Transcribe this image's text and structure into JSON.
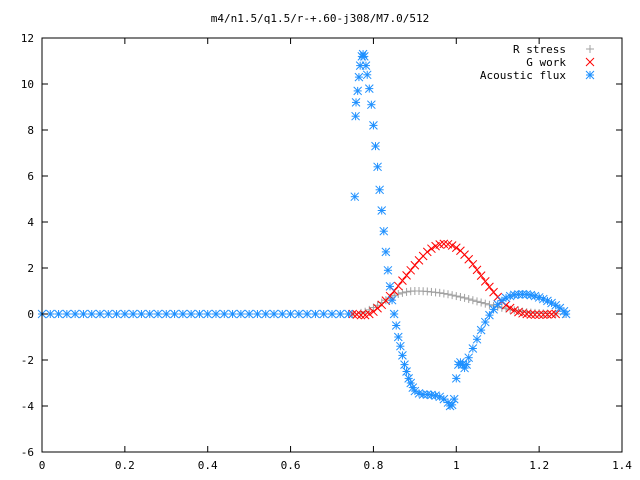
{
  "chart_data": {
    "type": "scatter",
    "title": "m4/n1.5/q1.5/r-+.60-j308/M7.0/512",
    "xlabel": "",
    "ylabel": "",
    "xlim": [
      0,
      1.4
    ],
    "ylim": [
      -6,
      12
    ],
    "xticks": [
      0,
      0.2,
      0.4,
      0.6,
      0.8,
      1,
      1.2,
      1.4
    ],
    "xtick_labels": [
      "0",
      "0.2",
      "0.4",
      "0.6",
      "0.8",
      "1",
      "1.2",
      "1.4"
    ],
    "yticks": [
      -6,
      -4,
      -2,
      0,
      2,
      4,
      6,
      8,
      10,
      12
    ],
    "ytick_labels": [
      "-6",
      "-4",
      "-2",
      "0",
      "2",
      "4",
      "6",
      "8",
      "10",
      "12"
    ],
    "grid": false,
    "legend_position": "top-right",
    "series": [
      {
        "name": "R stress",
        "marker": "plus",
        "color": "#a0a0a0",
        "points": [
          [
            0.75,
            0.0
          ],
          [
            0.77,
            0.05
          ],
          [
            0.78,
            0.1
          ],
          [
            0.79,
            0.18
          ],
          [
            0.8,
            0.28
          ],
          [
            0.81,
            0.38
          ],
          [
            0.82,
            0.5
          ],
          [
            0.83,
            0.6
          ],
          [
            0.84,
            0.7
          ],
          [
            0.85,
            0.8
          ],
          [
            0.86,
            0.87
          ],
          [
            0.87,
            0.92
          ],
          [
            0.88,
            0.96
          ],
          [
            0.89,
            0.99
          ],
          [
            0.9,
            1.0
          ],
          [
            0.91,
            1.0
          ],
          [
            0.92,
            0.99
          ],
          [
            0.93,
            0.98
          ],
          [
            0.94,
            0.96
          ],
          [
            0.95,
            0.94
          ],
          [
            0.96,
            0.92
          ],
          [
            0.97,
            0.89
          ],
          [
            0.98,
            0.86
          ],
          [
            0.99,
            0.82
          ],
          [
            1.0,
            0.78
          ],
          [
            1.01,
            0.74
          ],
          [
            1.02,
            0.7
          ],
          [
            1.03,
            0.65
          ],
          [
            1.04,
            0.6
          ],
          [
            1.05,
            0.55
          ],
          [
            1.06,
            0.5
          ],
          [
            1.07,
            0.45
          ],
          [
            1.08,
            0.4
          ],
          [
            1.09,
            0.35
          ],
          [
            1.1,
            0.31
          ],
          [
            1.11,
            0.27
          ],
          [
            1.12,
            0.23
          ],
          [
            1.13,
            0.19
          ],
          [
            1.14,
            0.16
          ],
          [
            1.15,
            0.13
          ],
          [
            1.16,
            0.1
          ],
          [
            1.17,
            0.08
          ],
          [
            1.18,
            0.06
          ],
          [
            1.19,
            0.05
          ],
          [
            1.2,
            0.04
          ],
          [
            1.21,
            0.03
          ],
          [
            1.22,
            0.02
          ],
          [
            1.24,
            0.01
          ],
          [
            1.26,
            0.0
          ]
        ]
      },
      {
        "name": "G work",
        "marker": "cross",
        "color": "#ff0000",
        "points": [
          [
            0.75,
            0.0
          ],
          [
            0.76,
            -0.02
          ],
          [
            0.77,
            -0.05
          ],
          [
            0.78,
            -0.05
          ],
          [
            0.79,
            0.0
          ],
          [
            0.8,
            0.1
          ],
          [
            0.81,
            0.25
          ],
          [
            0.82,
            0.4
          ],
          [
            0.83,
            0.58
          ],
          [
            0.84,
            0.78
          ],
          [
            0.85,
            1.0
          ],
          [
            0.86,
            1.22
          ],
          [
            0.87,
            1.45
          ],
          [
            0.88,
            1.68
          ],
          [
            0.89,
            1.9
          ],
          [
            0.9,
            2.12
          ],
          [
            0.91,
            2.33
          ],
          [
            0.92,
            2.52
          ],
          [
            0.93,
            2.7
          ],
          [
            0.94,
            2.84
          ],
          [
            0.95,
            2.95
          ],
          [
            0.96,
            3.02
          ],
          [
            0.97,
            3.05
          ],
          [
            0.98,
            3.03
          ],
          [
            0.99,
            2.98
          ],
          [
            1.0,
            2.88
          ],
          [
            1.01,
            2.75
          ],
          [
            1.02,
            2.58
          ],
          [
            1.03,
            2.38
          ],
          [
            1.04,
            2.16
          ],
          [
            1.05,
            1.92
          ],
          [
            1.06,
            1.67
          ],
          [
            1.07,
            1.42
          ],
          [
            1.08,
            1.18
          ],
          [
            1.09,
            0.95
          ],
          [
            1.1,
            0.74
          ],
          [
            1.11,
            0.55
          ],
          [
            1.12,
            0.39
          ],
          [
            1.13,
            0.26
          ],
          [
            1.14,
            0.16
          ],
          [
            1.15,
            0.08
          ],
          [
            1.16,
            0.03
          ],
          [
            1.17,
            0.0
          ],
          [
            1.18,
            -0.02
          ],
          [
            1.19,
            -0.03
          ],
          [
            1.2,
            -0.03
          ],
          [
            1.21,
            -0.03
          ],
          [
            1.22,
            -0.02
          ],
          [
            1.23,
            -0.01
          ],
          [
            1.24,
            0.0
          ]
        ]
      },
      {
        "name": "Acoustic flux",
        "marker": "star",
        "color": "#1e90ff",
        "points": [
          [
            0.0,
            0.0
          ],
          [
            0.02,
            0.0
          ],
          [
            0.04,
            0.0
          ],
          [
            0.06,
            0.0
          ],
          [
            0.08,
            0.0
          ],
          [
            0.1,
            0.0
          ],
          [
            0.12,
            0.0
          ],
          [
            0.14,
            0.0
          ],
          [
            0.16,
            0.0
          ],
          [
            0.18,
            0.0
          ],
          [
            0.2,
            0.0
          ],
          [
            0.22,
            0.0
          ],
          [
            0.24,
            0.0
          ],
          [
            0.26,
            0.0
          ],
          [
            0.28,
            0.0
          ],
          [
            0.3,
            0.0
          ],
          [
            0.32,
            0.0
          ],
          [
            0.34,
            0.0
          ],
          [
            0.36,
            0.0
          ],
          [
            0.38,
            0.0
          ],
          [
            0.4,
            0.0
          ],
          [
            0.42,
            0.0
          ],
          [
            0.44,
            0.0
          ],
          [
            0.46,
            0.0
          ],
          [
            0.48,
            0.0
          ],
          [
            0.5,
            0.0
          ],
          [
            0.52,
            0.0
          ],
          [
            0.54,
            0.0
          ],
          [
            0.56,
            0.0
          ],
          [
            0.58,
            0.0
          ],
          [
            0.6,
            0.0
          ],
          [
            0.62,
            0.0
          ],
          [
            0.64,
            0.0
          ],
          [
            0.66,
            0.0
          ],
          [
            0.68,
            0.0
          ],
          [
            0.7,
            0.0
          ],
          [
            0.72,
            0.0
          ],
          [
            0.74,
            0.0
          ],
          [
            0.755,
            5.1
          ],
          [
            0.757,
            8.6
          ],
          [
            0.758,
            9.2
          ],
          [
            0.762,
            9.7
          ],
          [
            0.765,
            10.3
          ],
          [
            0.768,
            10.8
          ],
          [
            0.772,
            11.2
          ],
          [
            0.775,
            11.3
          ],
          [
            0.778,
            11.2
          ],
          [
            0.782,
            10.8
          ],
          [
            0.785,
            10.4
          ],
          [
            0.79,
            9.8
          ],
          [
            0.795,
            9.1
          ],
          [
            0.8,
            8.2
          ],
          [
            0.805,
            7.3
          ],
          [
            0.81,
            6.4
          ],
          [
            0.815,
            5.4
          ],
          [
            0.82,
            4.5
          ],
          [
            0.825,
            3.6
          ],
          [
            0.83,
            2.7
          ],
          [
            0.835,
            1.9
          ],
          [
            0.84,
            1.2
          ],
          [
            0.845,
            0.6
          ],
          [
            0.85,
            0.0
          ],
          [
            0.855,
            -0.5
          ],
          [
            0.86,
            -1.0
          ],
          [
            0.865,
            -1.4
          ],
          [
            0.87,
            -1.8
          ],
          [
            0.875,
            -2.2
          ],
          [
            0.88,
            -2.5
          ],
          [
            0.885,
            -2.8
          ],
          [
            0.89,
            -3.0
          ],
          [
            0.895,
            -3.2
          ],
          [
            0.9,
            -3.35
          ],
          [
            0.91,
            -3.45
          ],
          [
            0.92,
            -3.5
          ],
          [
            0.93,
            -3.5
          ],
          [
            0.94,
            -3.52
          ],
          [
            0.95,
            -3.55
          ],
          [
            0.96,
            -3.6
          ],
          [
            0.97,
            -3.7
          ],
          [
            0.98,
            -3.85
          ],
          [
            0.985,
            -4.0
          ],
          [
            0.99,
            -3.95
          ],
          [
            0.995,
            -3.7
          ],
          [
            1.0,
            -2.8
          ],
          [
            1.005,
            -2.2
          ],
          [
            1.01,
            -2.1
          ],
          [
            1.015,
            -2.2
          ],
          [
            1.02,
            -2.35
          ],
          [
            1.025,
            -2.2
          ],
          [
            1.03,
            -1.9
          ],
          [
            1.04,
            -1.5
          ],
          [
            1.05,
            -1.1
          ],
          [
            1.06,
            -0.7
          ],
          [
            1.07,
            -0.35
          ],
          [
            1.08,
            -0.05
          ],
          [
            1.09,
            0.2
          ],
          [
            1.1,
            0.42
          ],
          [
            1.11,
            0.58
          ],
          [
            1.12,
            0.7
          ],
          [
            1.13,
            0.78
          ],
          [
            1.14,
            0.83
          ],
          [
            1.15,
            0.85
          ],
          [
            1.16,
            0.86
          ],
          [
            1.17,
            0.85
          ],
          [
            1.18,
            0.82
          ],
          [
            1.19,
            0.78
          ],
          [
            1.2,
            0.72
          ],
          [
            1.21,
            0.65
          ],
          [
            1.22,
            0.57
          ],
          [
            1.23,
            0.48
          ],
          [
            1.24,
            0.38
          ],
          [
            1.25,
            0.26
          ],
          [
            1.26,
            0.12
          ],
          [
            1.265,
            0.0
          ]
        ]
      }
    ]
  }
}
